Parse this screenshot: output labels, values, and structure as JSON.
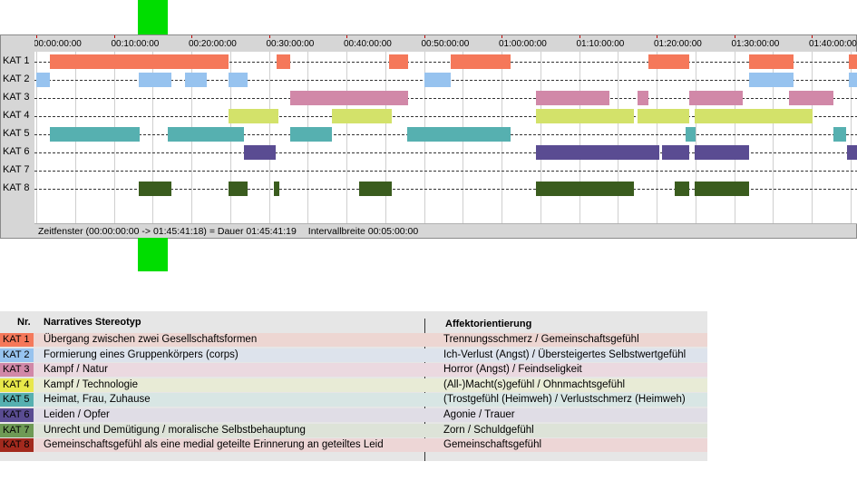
{
  "colors": {
    "kat1": "#f5785a",
    "kat2": "#97c3ef",
    "kat3": "#d188a8",
    "kat4": "#d3e26a",
    "kat5": "#56b0b0",
    "kat6": "#5a4c92",
    "kat7": "#95b27a",
    "kat8": "#3a5c1e",
    "marker": "#00dd00"
  },
  "timeline": {
    "time_labels": [
      "00:00:00:00",
      "00:10:00:00",
      "00:20:00:00",
      "00:30:00:00",
      "00:40:00:00",
      "00:50:00:00",
      "01:00:00:00",
      "01:10:00:00",
      "01:20:00:00",
      "01:30:00:00",
      "01:40:00:00"
    ],
    "rows": [
      {
        "label": "KAT 1",
        "color": "kat1",
        "segments": [
          [
            1.8,
            24.8
          ],
          [
            31.0,
            32.8
          ],
          [
            45.5,
            47.9
          ],
          [
            53.5,
            61.2
          ],
          [
            78.9,
            84.2
          ],
          [
            91.9,
            97.7
          ],
          [
            104.8,
            106.0
          ]
        ]
      },
      {
        "label": "KAT 2",
        "color": "kat2",
        "segments": [
          [
            0.0,
            1.8
          ],
          [
            13.2,
            17.4
          ],
          [
            19.2,
            22.0
          ],
          [
            24.8,
            27.2
          ],
          [
            50.0,
            53.5
          ],
          [
            91.9,
            97.7
          ],
          [
            104.8,
            106.0
          ]
        ]
      },
      {
        "label": "KAT 3",
        "color": "kat3",
        "segments": [
          [
            32.8,
            48.0
          ],
          [
            64.4,
            73.9
          ],
          [
            77.6,
            78.9
          ],
          [
            84.2,
            91.1
          ],
          [
            97.1,
            102.8
          ]
        ]
      },
      {
        "label": "KAT 4",
        "color": "kat4",
        "segments": [
          [
            24.8,
            31.2
          ],
          [
            38.1,
            45.8
          ],
          [
            64.4,
            77.1
          ],
          [
            77.6,
            84.2
          ],
          [
            84.9,
            100.1
          ]
        ]
      },
      {
        "label": "KAT 5",
        "color": "kat5",
        "segments": [
          [
            1.8,
            13.3
          ],
          [
            17.0,
            26.8
          ],
          [
            32.8,
            38.1
          ],
          [
            47.8,
            61.2
          ],
          [
            83.8,
            85.0
          ],
          [
            102.8,
            104.5
          ]
        ]
      },
      {
        "label": "KAT 6",
        "color": "kat6",
        "segments": [
          [
            26.8,
            30.9
          ],
          [
            64.4,
            80.3
          ],
          [
            80.7,
            84.2
          ],
          [
            84.9,
            91.9
          ],
          [
            104.6,
            106.0
          ]
        ]
      },
      {
        "label": "KAT 7",
        "color": "kat7",
        "segments": []
      },
      {
        "label": "KAT 8",
        "color": "kat8",
        "segments": [
          [
            13.2,
            17.4
          ],
          [
            24.8,
            27.2
          ],
          [
            30.7,
            31.4
          ],
          [
            41.6,
            45.8
          ],
          [
            64.4,
            77.1
          ],
          [
            82.3,
            84.2
          ],
          [
            84.9,
            91.9
          ]
        ]
      }
    ],
    "status_window": "Zeitfenster (00:00:00:00 -> 01:45:41:18) = Dauer 01:45:41:19",
    "status_interval": "Intervallbreite 00:05:00:00"
  },
  "legend": {
    "header_nr": "Nr.",
    "header_stereotype": "Narratives Stereotyp",
    "header_affect": "Affektorientierung",
    "rows": [
      {
        "code": "KAT 1",
        "color": "kat1",
        "stereotype": "Übergang zwischen zwei Gesellschaftsformen",
        "affect": "Trennungsschmerz / Gemeinschaftsgefühl"
      },
      {
        "code": "KAT 2",
        "color": "kat2",
        "stereotype": "Formierung eines Gruppenkörpers (corps)",
        "affect": "Ich-Verlust (Angst) / Übersteigertes Selbstwertgefühl"
      },
      {
        "code": "KAT 3",
        "color": "kat3",
        "stereotype": "Kampf / Natur",
        "affect": "Horror (Angst) / Feindseligkeit"
      },
      {
        "code": "KAT 4",
        "color": "kat4",
        "stereotype": "Kampf / Technologie",
        "affect": "(All-)Macht(s)gefühl / Ohnmachtsgefühl"
      },
      {
        "code": "KAT 5",
        "color": "kat5",
        "stereotype": "Heimat, Frau, Zuhause",
        "affect": "(Trostgefühl (Heimweh) / Verlustschmerz (Heimweh)"
      },
      {
        "code": "KAT 6",
        "color": "kat6",
        "stereotype": "Leiden / Opfer",
        "affect": "Agonie / Trauer"
      },
      {
        "code": "KAT 7",
        "color": "kat7",
        "stereotype": "Unrecht und Demütigung / moralische Selbstbehauptung",
        "affect": "Zorn / Schuldgefühl"
      },
      {
        "code": "KAT 8",
        "color": "kat8b",
        "stereotype": "Gemeinschaftsgefühl als eine medial geteilte Erinnerung an geteiltes Leid",
        "affect": "Gemeinschaftsgefühl"
      }
    ],
    "code_colors": {
      "kat1": "#f5785a",
      "kat2": "#97c3ef",
      "kat3": "#d188a8",
      "kat4": "#e8e84a",
      "kat5": "#56b0b0",
      "kat6": "#5a4c92",
      "kat7": "#6e9a55",
      "kat8b": "#a32a1e"
    },
    "row_bg_colors": {
      "kat1": "#edd6d2",
      "kat2": "#dde3ec",
      "kat3": "#ebd9e0",
      "kat4": "#e8ebd6",
      "kat5": "#d8e6e4",
      "kat6": "#e0dde6",
      "kat7": "#dde3d8",
      "kat8b": "#edd6d6"
    }
  }
}
